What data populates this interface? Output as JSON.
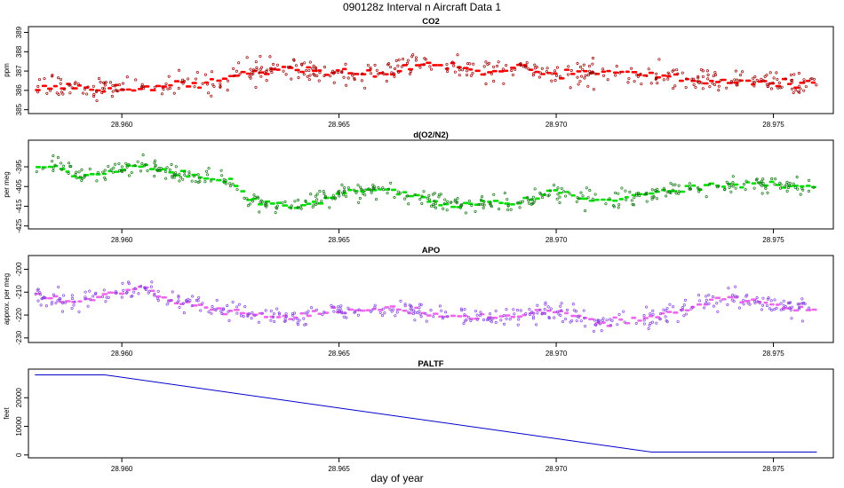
{
  "title": "090128z   Interval n Aircraft Data 1",
  "xlabel": "day of year",
  "chart_data": [
    {
      "type": "scatter",
      "title": "CO2",
      "ylabel": "ppm",
      "color": "#ff0000",
      "xlim": [
        28.95785,
        28.97638
      ],
      "ylim": [
        384.8,
        389.3
      ],
      "xticks": [
        28.96,
        28.965,
        28.97,
        28.975
      ],
      "xticklabels": [
        "28.960",
        "28.965",
        "28.970",
        "28.975"
      ],
      "yticks": [
        385,
        386,
        387,
        388,
        389
      ],
      "yticklabels": [
        "385",
        "386",
        "387",
        "388",
        "389"
      ],
      "x_start": 28.958,
      "x_end": 28.976,
      "trend_x": [
        28.958,
        28.96,
        28.962,
        28.9628,
        28.964,
        28.965,
        28.966,
        28.967,
        28.968,
        28.969,
        28.97,
        28.971,
        28.972,
        28.973,
        28.974,
        28.975,
        28.976
      ],
      "trend_y": [
        386.2,
        386.1,
        386.4,
        386.9,
        387.2,
        386.9,
        386.8,
        387.5,
        387.0,
        387.2,
        386.8,
        386.9,
        386.8,
        386.6,
        386.5,
        386.4,
        386.3
      ],
      "noise": 0.45
    },
    {
      "type": "scatter",
      "title": "d(O2/N2)",
      "ylabel": "per meg",
      "color": "#00dd00",
      "xlim": [
        28.95785,
        28.97638
      ],
      "ylim": [
        -426.5,
        -381.5
      ],
      "xticks": [
        28.96,
        28.965,
        28.97,
        28.975
      ],
      "xticklabels": [
        "28.960",
        "28.965",
        "28.970",
        "28.975"
      ],
      "yticks": [
        -425,
        -415,
        -405,
        -395
      ],
      "yticklabels": [
        "-425",
        "-415",
        "-405",
        "-395"
      ],
      "x_start": 28.958,
      "x_end": 28.976,
      "trend_x": [
        28.958,
        28.9585,
        28.959,
        28.96,
        28.9605,
        28.961,
        28.962,
        28.9625,
        28.963,
        28.964,
        28.965,
        28.966,
        28.967,
        28.968,
        28.9685,
        28.969,
        28.97,
        28.971,
        28.972,
        28.973,
        28.974,
        28.975,
        28.976
      ],
      "trend_y": [
        -395,
        -394,
        -400,
        -396,
        -394,
        -397,
        -401,
        -403,
        -412,
        -416,
        -409,
        -406,
        -412,
        -415,
        -413,
        -414,
        -407,
        -413,
        -409,
        -406,
        -404,
        -404,
        -406
      ],
      "noise": 3.0
    },
    {
      "type": "scatter",
      "title": "APO",
      "ylabel": "approx. per meg",
      "color": "#ee66ee",
      "xlim": [
        28.95785,
        28.97638
      ],
      "ylim": [
        -232,
        -194
      ],
      "xticks": [
        28.96,
        28.965,
        28.97,
        28.975
      ],
      "xticklabels": [
        "28.960",
        "28.965",
        "28.970",
        "28.975"
      ],
      "yticks": [
        -230,
        -220,
        -210,
        -200
      ],
      "yticklabels": [
        "-230",
        "-220",
        "-210",
        "-200"
      ],
      "x_start": 28.958,
      "x_end": 28.976,
      "trend_x": [
        28.958,
        28.959,
        28.96,
        28.9605,
        28.961,
        28.962,
        28.963,
        28.964,
        28.965,
        28.966,
        28.967,
        28.968,
        28.969,
        28.97,
        28.971,
        28.972,
        28.973,
        28.974,
        28.975,
        28.976
      ],
      "trend_y": [
        -211,
        -214,
        -210,
        -207,
        -213,
        -217,
        -220,
        -221,
        -218,
        -217,
        -219,
        -221,
        -221,
        -218,
        -223,
        -222,
        -217,
        -212,
        -216,
        -218
      ],
      "noise": 3.0
    },
    {
      "type": "line",
      "title": "PALTF",
      "ylabel": "feet",
      "color": "#0000cc",
      "xlim": [
        28.95785,
        28.97638
      ],
      "ylim": [
        -1000,
        30000
      ],
      "xticks": [
        28.96,
        28.965,
        28.97,
        28.975
      ],
      "xticklabels": [
        "28.960",
        "28.965",
        "28.970",
        "28.975"
      ],
      "yticks": [
        0,
        10000,
        20000
      ],
      "yticklabels": [
        "0",
        "10000",
        "20000"
      ],
      "x": [
        28.958,
        28.9596,
        28.9722,
        28.976
      ],
      "y": [
        28000,
        28000,
        1000,
        1000
      ]
    }
  ]
}
